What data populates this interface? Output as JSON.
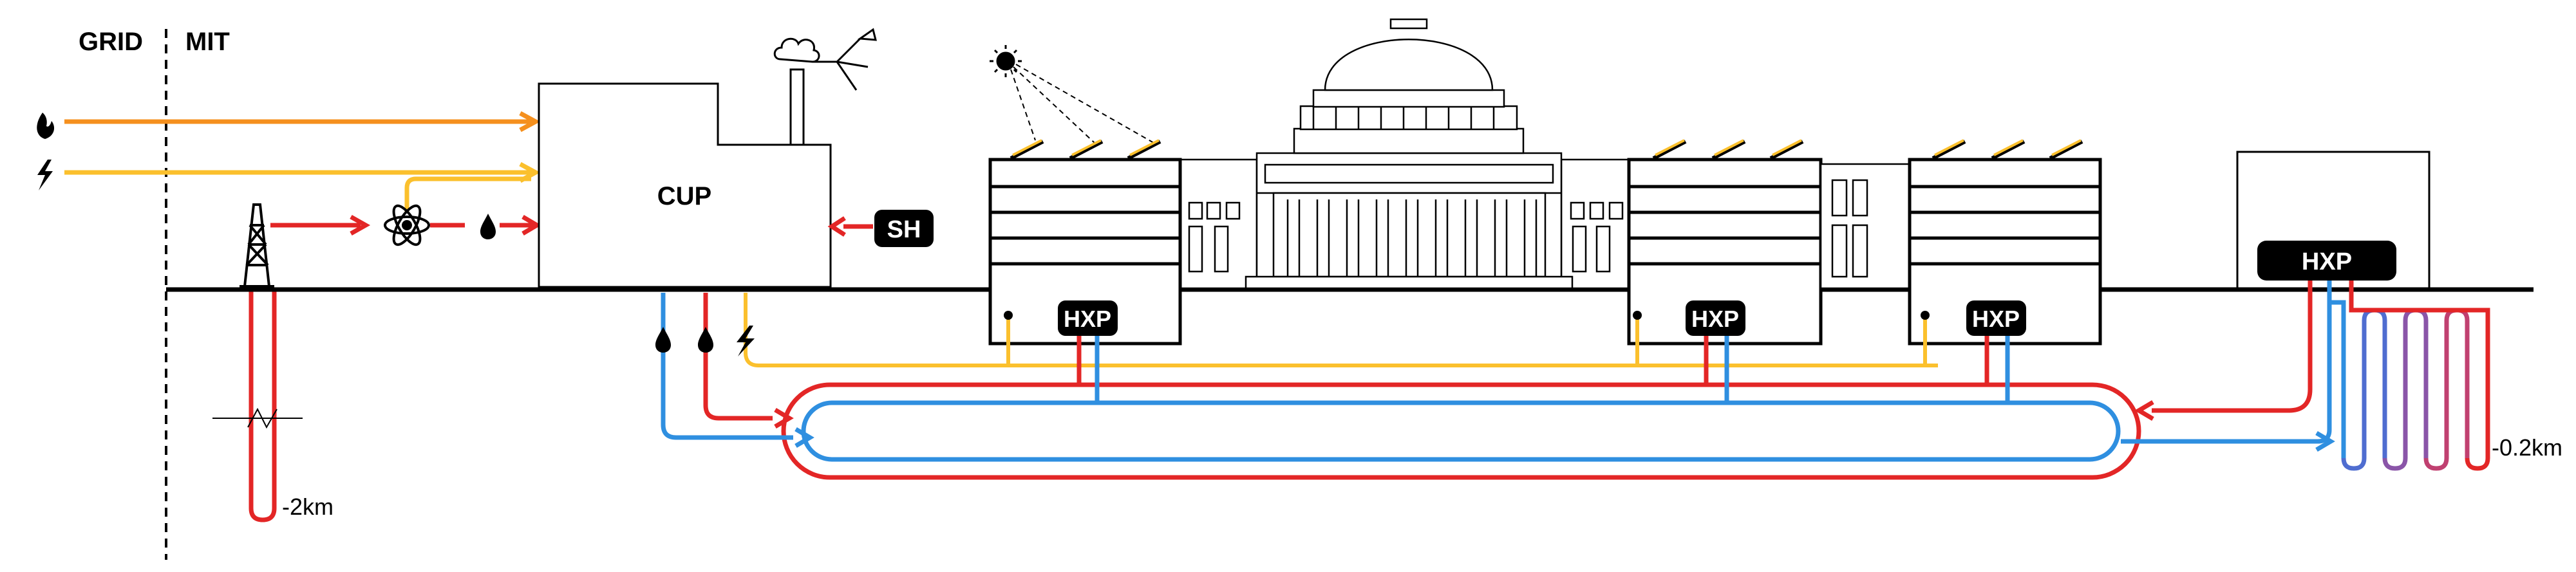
{
  "header": {
    "grid_label": "GRID",
    "mit_label": "MIT"
  },
  "plant": {
    "label": "CUP"
  },
  "solar_heat": {
    "label": "SH"
  },
  "heat_exchange": {
    "label": "HXP"
  },
  "depths": {
    "deep_well": "-2km",
    "shallow_field": "-0.2km"
  },
  "icons": [
    "fire-icon",
    "lightning-icon",
    "nuclear-atom-icon",
    "water-drop-icon",
    "drilling-rig-icon",
    "sun-icon",
    "smoke-cloud-icon",
    "solar-panel-icon"
  ],
  "colors": {
    "gas_line": "#F5901E",
    "electric_line": "#FBC02D",
    "hot_line": "#E32626",
    "cold_line": "#2F8FE0",
    "ink": "#000000"
  }
}
